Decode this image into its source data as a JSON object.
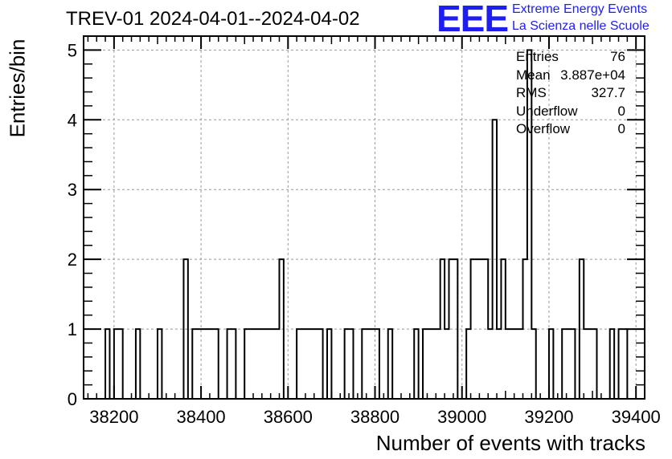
{
  "header": {
    "title": "TREV-01 2024-04-01--2024-04-02",
    "logo_text": "EEE",
    "logo_line1": "Extreme Energy Events",
    "logo_line2": "La Scienza nelle Scuole"
  },
  "colors": {
    "logo": "#1e1ef0",
    "histogram": "#000000",
    "grid": "#999999"
  },
  "stats": [
    {
      "key": "Entries",
      "value": "76"
    },
    {
      "key": "Mean",
      "value": "3.887e+04"
    },
    {
      "key": "RMS",
      "value": "327.7"
    },
    {
      "key": "Underflow",
      "value": "0"
    },
    {
      "key": "Overflow",
      "value": "0"
    }
  ],
  "chart_data": {
    "type": "bar",
    "title": "TREV-01 2024-04-01--2024-04-02",
    "xlabel": "Number of events with tracks",
    "ylabel": "Entries/bin",
    "xlim": [
      38130,
      39420
    ],
    "ylim": [
      0,
      5.2
    ],
    "grid": true,
    "bin_width": 10,
    "bins": [
      {
        "x0": 38180,
        "x1": 38190,
        "y": 1
      },
      {
        "x0": 38200,
        "x1": 38220,
        "y": 1
      },
      {
        "x0": 38250,
        "x1": 38260,
        "y": 1
      },
      {
        "x0": 38300,
        "x1": 38310,
        "y": 1
      },
      {
        "x0": 38360,
        "x1": 38370,
        "y": 2
      },
      {
        "x0": 38380,
        "x1": 38440,
        "y": 1
      },
      {
        "x0": 38460,
        "x1": 38480,
        "y": 1
      },
      {
        "x0": 38500,
        "x1": 38570,
        "y": 1
      },
      {
        "x0": 38570,
        "x1": 38580,
        "y": 1
      },
      {
        "x0": 38580,
        "x1": 38590,
        "y": 2
      },
      {
        "x0": 38620,
        "x1": 38680,
        "y": 1
      },
      {
        "x0": 38690,
        "x1": 38700,
        "y": 1
      },
      {
        "x0": 38730,
        "x1": 38750,
        "y": 1
      },
      {
        "x0": 38770,
        "x1": 38810,
        "y": 1
      },
      {
        "x0": 38830,
        "x1": 38840,
        "y": 1
      },
      {
        "x0": 38890,
        "x1": 38900,
        "y": 1
      },
      {
        "x0": 38910,
        "x1": 38950,
        "y": 1
      },
      {
        "x0": 38950,
        "x1": 38960,
        "y": 2
      },
      {
        "x0": 38960,
        "x1": 38970,
        "y": 1
      },
      {
        "x0": 38970,
        "x1": 38990,
        "y": 2
      },
      {
        "x0": 39010,
        "x1": 39020,
        "y": 1
      },
      {
        "x0": 39020,
        "x1": 39060,
        "y": 2
      },
      {
        "x0": 39060,
        "x1": 39070,
        "y": 1
      },
      {
        "x0": 39070,
        "x1": 39080,
        "y": 4
      },
      {
        "x0": 39080,
        "x1": 39090,
        "y": 1
      },
      {
        "x0": 39090,
        "x1": 39100,
        "y": 2
      },
      {
        "x0": 39100,
        "x1": 39140,
        "y": 1
      },
      {
        "x0": 39140,
        "x1": 39150,
        "y": 2
      },
      {
        "x0": 39150,
        "x1": 39160,
        "y": 5
      },
      {
        "x0": 39160,
        "x1": 39170,
        "y": 1
      },
      {
        "x0": 39200,
        "x1": 39210,
        "y": 1
      },
      {
        "x0": 39230,
        "x1": 39260,
        "y": 1
      },
      {
        "x0": 39270,
        "x1": 39280,
        "y": 2
      },
      {
        "x0": 39280,
        "x1": 39310,
        "y": 1
      },
      {
        "x0": 39340,
        "x1": 39350,
        "y": 1
      },
      {
        "x0": 39360,
        "x1": 39380,
        "y": 1
      }
    ],
    "x_ticks": [
      {
        "value": 38200,
        "label": "38200"
      },
      {
        "value": 38400,
        "label": "38400"
      },
      {
        "value": 38600,
        "label": "38600"
      },
      {
        "value": 38800,
        "label": "38800"
      },
      {
        "value": 39000,
        "label": "39000"
      },
      {
        "value": 39200,
        "label": "39200"
      },
      {
        "value": 39400,
        "label": "39400"
      }
    ],
    "y_ticks": [
      {
        "value": 0,
        "label": "0"
      },
      {
        "value": 1,
        "label": "1"
      },
      {
        "value": 2,
        "label": "2"
      },
      {
        "value": 3,
        "label": "3"
      },
      {
        "value": 4,
        "label": "4"
      },
      {
        "value": 5,
        "label": "5"
      }
    ]
  }
}
